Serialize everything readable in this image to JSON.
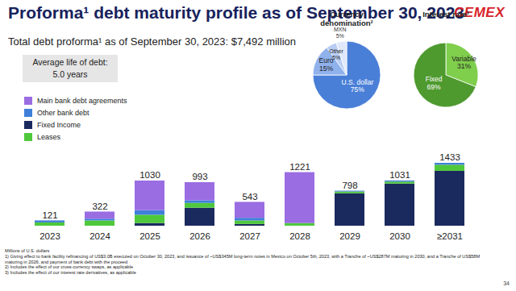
{
  "page": {
    "title": "Proforma¹ debt maturity profile as of September 30, 2023",
    "logo": "CEMEX",
    "subtitle": "Total debt proforma¹ as of September 30, 2023: $7,492 million",
    "highlight": [
      "Average life of debt:",
      "5.0 years"
    ],
    "units": "Millions of U.S. dollars",
    "footnotes": [
      "1) Giving effect to bank facility refinancing of US$3.0B executed on October 30, 2023, and issuance of ~US$345M long-term notes in Mexico on October 5th, 2023, with a Tranche of ~US$287M maturing in 2030, and a Tranche of US$58M maturing in 2026, and payment of bank debt with the proceed",
      "2) Includes the effect of our cross-currency swaps, as applicable",
      "3) Includes the effect of our interest rate derivatives, as applicable"
    ],
    "page_number": 34
  },
  "chart_data": [
    {
      "type": "bar",
      "stacked": true,
      "legend": "top-left",
      "tick_labels": "x",
      "categories": [
        "2023",
        "2024",
        "2025",
        "2026",
        "2027",
        "2028",
        "2029",
        "2030",
        "≥2031"
      ],
      "series": [
        {
          "name": "Main bank debt agreements",
          "color": "#9a6de2",
          "values": [
            0,
            162,
            675,
            413,
            363,
            1161,
            0,
            0,
            0
          ]
        },
        {
          "name": "Other bank debt",
          "color": "#3f7fd9",
          "values": [
            46,
            40,
            105,
            60,
            60,
            0,
            18,
            26,
            43
          ]
        },
        {
          "name": "Fixed Income",
          "color": "#1b2a5e",
          "values": [
            0,
            0,
            60,
            410,
            40,
            0,
            740,
            960,
            1250
          ]
        },
        {
          "name": "Leases",
          "color": "#4fc83c",
          "values": [
            75,
            120,
            190,
            110,
            80,
            60,
            40,
            45,
            140
          ]
        }
      ],
      "totals": [
        121,
        322,
        1030,
        993,
        543,
        1221,
        798,
        1031,
        1433
      ]
    },
    {
      "type": "pie",
      "title": "Currency denomination²",
      "data_labels": true,
      "categories": [
        "U.S. dollar",
        "Euro",
        "Other",
        "MXN"
      ],
      "values": [
        75,
        15,
        5,
        5
      ],
      "value_labels": [
        "75%",
        "15%",
        "5%",
        "5%"
      ],
      "colors": [
        "#4a7fd8",
        "#8fb1ec",
        "#b9cdf3",
        "#dfe8fa"
      ]
    },
    {
      "type": "pie",
      "title": "Interest rate³",
      "data_labels": true,
      "categories": [
        "Variable",
        "Fixed"
      ],
      "values": [
        31,
        69
      ],
      "value_labels": [
        "31%",
        "69%"
      ],
      "colors": [
        "#7fce4c",
        "#4e9a2e"
      ]
    }
  ]
}
